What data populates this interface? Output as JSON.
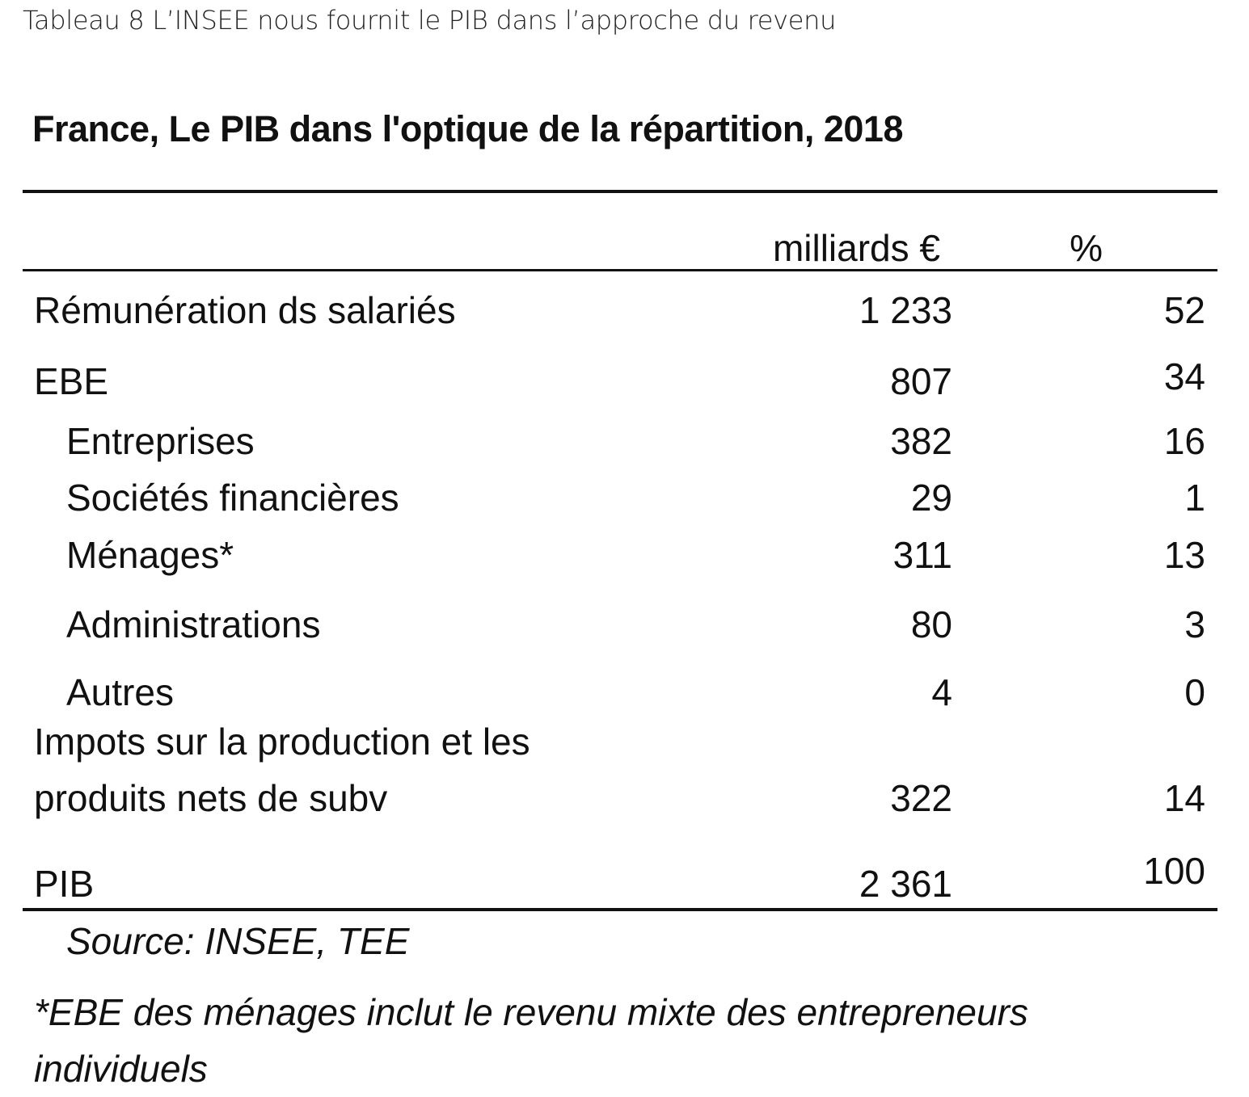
{
  "caption": "Tableau 8 L’INSEE nous fournit le PIB dans l’approche du revenu",
  "table": {
    "title": "France, Le PIB dans l'optique de la répartition, 2018",
    "headers": {
      "unit": "milliards €",
      "percent": "%"
    },
    "rows": [
      {
        "label": "Rémunération ds salariés",
        "value": "1 233",
        "percent": "52"
      },
      {
        "label": "EBE",
        "value": "807",
        "percent": "34"
      },
      {
        "label": "Entreprises",
        "value": "382",
        "percent": "16"
      },
      {
        "label": "Sociétés financières",
        "value": "29",
        "percent": "1"
      },
      {
        "label": "Ménages*",
        "value": "311",
        "percent": "13"
      },
      {
        "label": "Administrations",
        "value": "80",
        "percent": "3"
      },
      {
        "label": "Autres",
        "value": "4",
        "percent": "0"
      },
      {
        "label_line1": "Impots sur la production et les",
        "label": "produits nets de subv",
        "value": "322",
        "percent": "14"
      },
      {
        "label": "PIB",
        "value": "2 361",
        "percent": "100"
      }
    ],
    "source": "Source: INSEE, TEE",
    "footnote": "*EBE des ménages inclut le revenu mixte des entrepreneurs individuels"
  }
}
